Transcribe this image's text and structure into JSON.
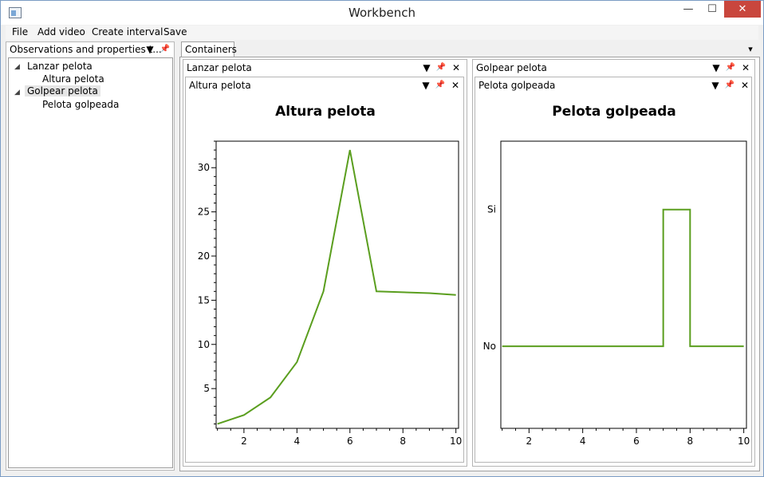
{
  "window": {
    "title": "Workbench",
    "min_label": "—",
    "max_label": "☐",
    "close_label": "✕"
  },
  "menu": {
    "file": "File",
    "add_video": "Add video",
    "create_interval": "Create interval",
    "save": "Save"
  },
  "left_panel": {
    "header": "Observations and properties t...",
    "tree": [
      {
        "label": "Lanzar pelota",
        "children": [
          "Altura pelota"
        ]
      },
      {
        "label": "Golpear pelota",
        "children": [
          "Pelota golpeada"
        ]
      }
    ]
  },
  "containers": {
    "tab_label": "Containers"
  },
  "left_container": {
    "header": "Lanzar pelota",
    "sub_header": "Altura pelota"
  },
  "right_container": {
    "header": "Golpear pelota",
    "sub_header": "Pelota golpeada"
  },
  "icons": {
    "dropdown": "▼",
    "pin": "📌",
    "close": "✕",
    "expand": "◢",
    "overflow": "▾"
  },
  "chart_data": [
    {
      "type": "line",
      "title": "Altura pelota",
      "x": [
        1,
        2,
        3,
        4,
        5,
        6,
        7,
        8,
        9,
        10
      ],
      "series": [
        {
          "values": [
            1,
            2,
            4,
            8,
            16,
            32,
            16,
            15.9,
            15.8,
            15.6
          ]
        }
      ],
      "xticks": [
        2,
        4,
        6,
        8,
        10
      ],
      "yticks": [
        5,
        10,
        15,
        20,
        25,
        30
      ],
      "xlim": [
        0.95,
        10.1
      ],
      "ylim": [
        0.5,
        33
      ],
      "color": "#5a9e1e"
    },
    {
      "type": "line",
      "title": "Pelota golpeada",
      "x": [
        1,
        7,
        7,
        8,
        8,
        10
      ],
      "series": [
        {
          "values": [
            0,
            0,
            1,
            1,
            0,
            0
          ]
        }
      ],
      "xticks": [
        2,
        4,
        6,
        8,
        10
      ],
      "ytick_labels": [
        "No",
        "Si"
      ],
      "xlim": [
        0.95,
        10.1
      ],
      "ylim": [
        -0.6,
        1.5
      ],
      "color": "#5a9e1e"
    }
  ]
}
